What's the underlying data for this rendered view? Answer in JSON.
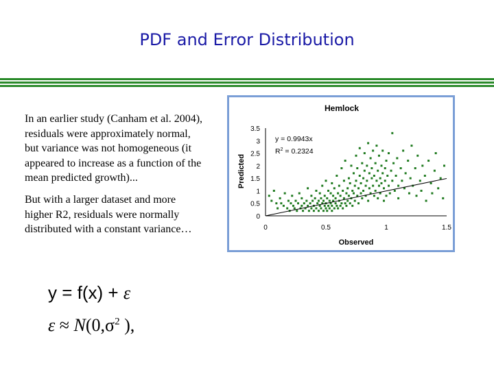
{
  "slide": {
    "title": "PDF and Error Distribution",
    "paragraph_1": "In an earlier study (Canham et al. 2004), residuals were approximately normal, but variance was not homogeneous (it appeared to increase as a function of the mean predicted growth)...",
    "paragraph_2": "But with a larger dataset and more higher R2, residuals were normally distributed with a constant variance…",
    "equation_1": {
      "lhs": "y = f(x) + ",
      "epsilon": "ε"
    },
    "equation_2": {
      "epsilon": "ε",
      "approx": " ≈ ",
      "normal": "N",
      "args": "(0,σ",
      "exponent": "2",
      "close": " ),"
    }
  },
  "colors": {
    "title": "#1a1aa6",
    "rules": "#2a8a2a",
    "chart_border": "#7a9ed6",
    "points": "#1f7a1f"
  },
  "chart_data": {
    "type": "scatter",
    "title": "Hemlock",
    "xlabel": "Observed",
    "ylabel": "Predicted",
    "xlim": [
      0,
      1.5
    ],
    "ylim": [
      0,
      3.5
    ],
    "xticks": [
      "0",
      "0.5",
      "1",
      "1.5"
    ],
    "yticks": [
      "0",
      "0.5",
      "1",
      "1.5",
      "2",
      "2.5",
      "3",
      "3.5"
    ],
    "grid": false,
    "legend": "none",
    "trendline_label": "y = 0.9943x",
    "r2_label": {
      "base": "R",
      "exp": "2",
      "rest": " = 0.2324"
    },
    "trendline": {
      "slope": 0.9943,
      "intercept": 0
    },
    "points": [
      [
        0.03,
        0.8
      ],
      [
        0.05,
        0.6
      ],
      [
        0.07,
        1.0
      ],
      [
        0.09,
        0.5
      ],
      [
        0.1,
        0.3
      ],
      [
        0.12,
        0.7
      ],
      [
        0.13,
        0.5
      ],
      [
        0.15,
        0.4
      ],
      [
        0.16,
        0.9
      ],
      [
        0.18,
        0.3
      ],
      [
        0.19,
        0.6
      ],
      [
        0.2,
        0.2
      ],
      [
        0.21,
        0.5
      ],
      [
        0.22,
        0.8
      ],
      [
        0.23,
        0.4
      ],
      [
        0.24,
        0.3
      ],
      [
        0.25,
        0.6
      ],
      [
        0.26,
        0.2
      ],
      [
        0.27,
        0.5
      ],
      [
        0.28,
        0.9
      ],
      [
        0.29,
        0.3
      ],
      [
        0.3,
        0.4
      ],
      [
        0.3,
        0.7
      ],
      [
        0.31,
        0.2
      ],
      [
        0.32,
        0.5
      ],
      [
        0.33,
        0.3
      ],
      [
        0.34,
        0.6
      ],
      [
        0.35,
        0.4
      ],
      [
        0.35,
        1.1
      ],
      [
        0.36,
        0.2
      ],
      [
        0.37,
        0.5
      ],
      [
        0.38,
        0.3
      ],
      [
        0.38,
        0.8
      ],
      [
        0.39,
        0.6
      ],
      [
        0.4,
        0.2
      ],
      [
        0.4,
        0.4
      ],
      [
        0.41,
        0.7
      ],
      [
        0.42,
        0.3
      ],
      [
        0.42,
        1.0
      ],
      [
        0.43,
        0.5
      ],
      [
        0.44,
        0.2
      ],
      [
        0.44,
        0.6
      ],
      [
        0.45,
        0.4
      ],
      [
        0.45,
        0.9
      ],
      [
        0.46,
        0.3
      ],
      [
        0.46,
        0.7
      ],
      [
        0.47,
        0.5
      ],
      [
        0.47,
        1.2
      ],
      [
        0.48,
        0.2
      ],
      [
        0.48,
        0.6
      ],
      [
        0.49,
        0.4
      ],
      [
        0.49,
        0.8
      ],
      [
        0.5,
        0.3
      ],
      [
        0.5,
        0.5
      ],
      [
        0.5,
        1.4
      ],
      [
        0.51,
        0.2
      ],
      [
        0.51,
        0.7
      ],
      [
        0.52,
        0.4
      ],
      [
        0.52,
        1.0
      ],
      [
        0.53,
        0.3
      ],
      [
        0.53,
        0.6
      ],
      [
        0.54,
        0.5
      ],
      [
        0.54,
        0.9
      ],
      [
        0.55,
        0.2
      ],
      [
        0.55,
        0.4
      ],
      [
        0.55,
        1.3
      ],
      [
        0.56,
        0.6
      ],
      [
        0.56,
        0.8
      ],
      [
        0.57,
        0.3
      ],
      [
        0.57,
        1.1
      ],
      [
        0.58,
        0.5
      ],
      [
        0.58,
        0.7
      ],
      [
        0.59,
        0.4
      ],
      [
        0.59,
        1.6
      ],
      [
        0.6,
        0.3
      ],
      [
        0.6,
        0.9
      ],
      [
        0.61,
        0.6
      ],
      [
        0.61,
        1.2
      ],
      [
        0.62,
        0.4
      ],
      [
        0.62,
        0.8
      ],
      [
        0.63,
        0.5
      ],
      [
        0.63,
        1.9
      ],
      [
        0.64,
        0.3
      ],
      [
        0.64,
        1.0
      ],
      [
        0.65,
        0.7
      ],
      [
        0.65,
        1.4
      ],
      [
        0.66,
        0.5
      ],
      [
        0.66,
        2.2
      ],
      [
        0.67,
        0.9
      ],
      [
        0.67,
        0.4
      ],
      [
        0.68,
        1.1
      ],
      [
        0.68,
        0.6
      ],
      [
        0.69,
        1.5
      ],
      [
        0.69,
        0.8
      ],
      [
        0.7,
        0.5
      ],
      [
        0.7,
        1.3
      ],
      [
        0.71,
        2.0
      ],
      [
        0.71,
        0.7
      ],
      [
        0.72,
        1.0
      ],
      [
        0.72,
        0.4
      ],
      [
        0.73,
        1.7
      ],
      [
        0.73,
        0.9
      ],
      [
        0.74,
        1.2
      ],
      [
        0.74,
        0.6
      ],
      [
        0.75,
        2.4
      ],
      [
        0.75,
        1.4
      ],
      [
        0.76,
        0.8
      ],
      [
        0.76,
        1.9
      ],
      [
        0.77,
        1.1
      ],
      [
        0.77,
        0.5
      ],
      [
        0.78,
        1.6
      ],
      [
        0.78,
        2.7
      ],
      [
        0.79,
        0.9
      ],
      [
        0.79,
        1.3
      ],
      [
        0.8,
        2.1
      ],
      [
        0.8,
        0.7
      ],
      [
        0.81,
        1.5
      ],
      [
        0.81,
        1.0
      ],
      [
        0.82,
        2.5
      ],
      [
        0.82,
        1.8
      ],
      [
        0.83,
        0.8
      ],
      [
        0.83,
        1.2
      ],
      [
        0.84,
        2.0
      ],
      [
        0.84,
        1.4
      ],
      [
        0.85,
        0.6
      ],
      [
        0.85,
        2.9
      ],
      [
        0.86,
        1.7
      ],
      [
        0.86,
        1.1
      ],
      [
        0.87,
        2.3
      ],
      [
        0.87,
        0.9
      ],
      [
        0.88,
        1.5
      ],
      [
        0.88,
        1.9
      ],
      [
        0.89,
        1.2
      ],
      [
        0.89,
        2.6
      ],
      [
        0.9,
        0.8
      ],
      [
        0.9,
        1.6
      ],
      [
        0.91,
        2.1
      ],
      [
        0.91,
        1.0
      ],
      [
        0.92,
        1.4
      ],
      [
        0.92,
        2.8
      ],
      [
        0.93,
        0.7
      ],
      [
        0.93,
        1.8
      ],
      [
        0.94,
        1.2
      ],
      [
        0.94,
        2.4
      ],
      [
        0.95,
        1.5
      ],
      [
        0.95,
        0.9
      ],
      [
        0.96,
        2.0
      ],
      [
        0.96,
        1.3
      ],
      [
        0.97,
        1.7
      ],
      [
        0.97,
        2.6
      ],
      [
        0.98,
        1.1
      ],
      [
        0.98,
        0.6
      ],
      [
        0.99,
        1.9
      ],
      [
        0.99,
        1.4
      ],
      [
        1.0,
        2.2
      ],
      [
        1.0,
        0.8
      ],
      [
        1.01,
        1.6
      ],
      [
        1.02,
        1.2
      ],
      [
        1.02,
        2.5
      ],
      [
        1.03,
        0.9
      ],
      [
        1.04,
        1.8
      ],
      [
        1.05,
        1.4
      ],
      [
        1.05,
        3.3
      ],
      [
        1.06,
        2.1
      ],
      [
        1.07,
        1.0
      ],
      [
        1.08,
        1.6
      ],
      [
        1.09,
        2.3
      ],
      [
        1.1,
        1.2
      ],
      [
        1.1,
        0.7
      ],
      [
        1.12,
        1.9
      ],
      [
        1.13,
        1.4
      ],
      [
        1.14,
        2.6
      ],
      [
        1.15,
        1.1
      ],
      [
        1.16,
        1.7
      ],
      [
        1.18,
        2.2
      ],
      [
        1.19,
        0.9
      ],
      [
        1.2,
        1.5
      ],
      [
        1.21,
        2.8
      ],
      [
        1.22,
        1.2
      ],
      [
        1.24,
        1.9
      ],
      [
        1.25,
        0.8
      ],
      [
        1.26,
        2.4
      ],
      [
        1.28,
        1.4
      ],
      [
        1.29,
        1.0
      ],
      [
        1.3,
        2.0
      ],
      [
        1.32,
        1.6
      ],
      [
        1.33,
        0.6
      ],
      [
        1.35,
        2.2
      ],
      [
        1.37,
        1.3
      ],
      [
        1.38,
        0.9
      ],
      [
        1.4,
        1.8
      ],
      [
        1.41,
        2.5
      ],
      [
        1.43,
        1.1
      ],
      [
        1.45,
        1.5
      ],
      [
        1.47,
        0.7
      ],
      [
        1.48,
        2.0
      ]
    ]
  }
}
